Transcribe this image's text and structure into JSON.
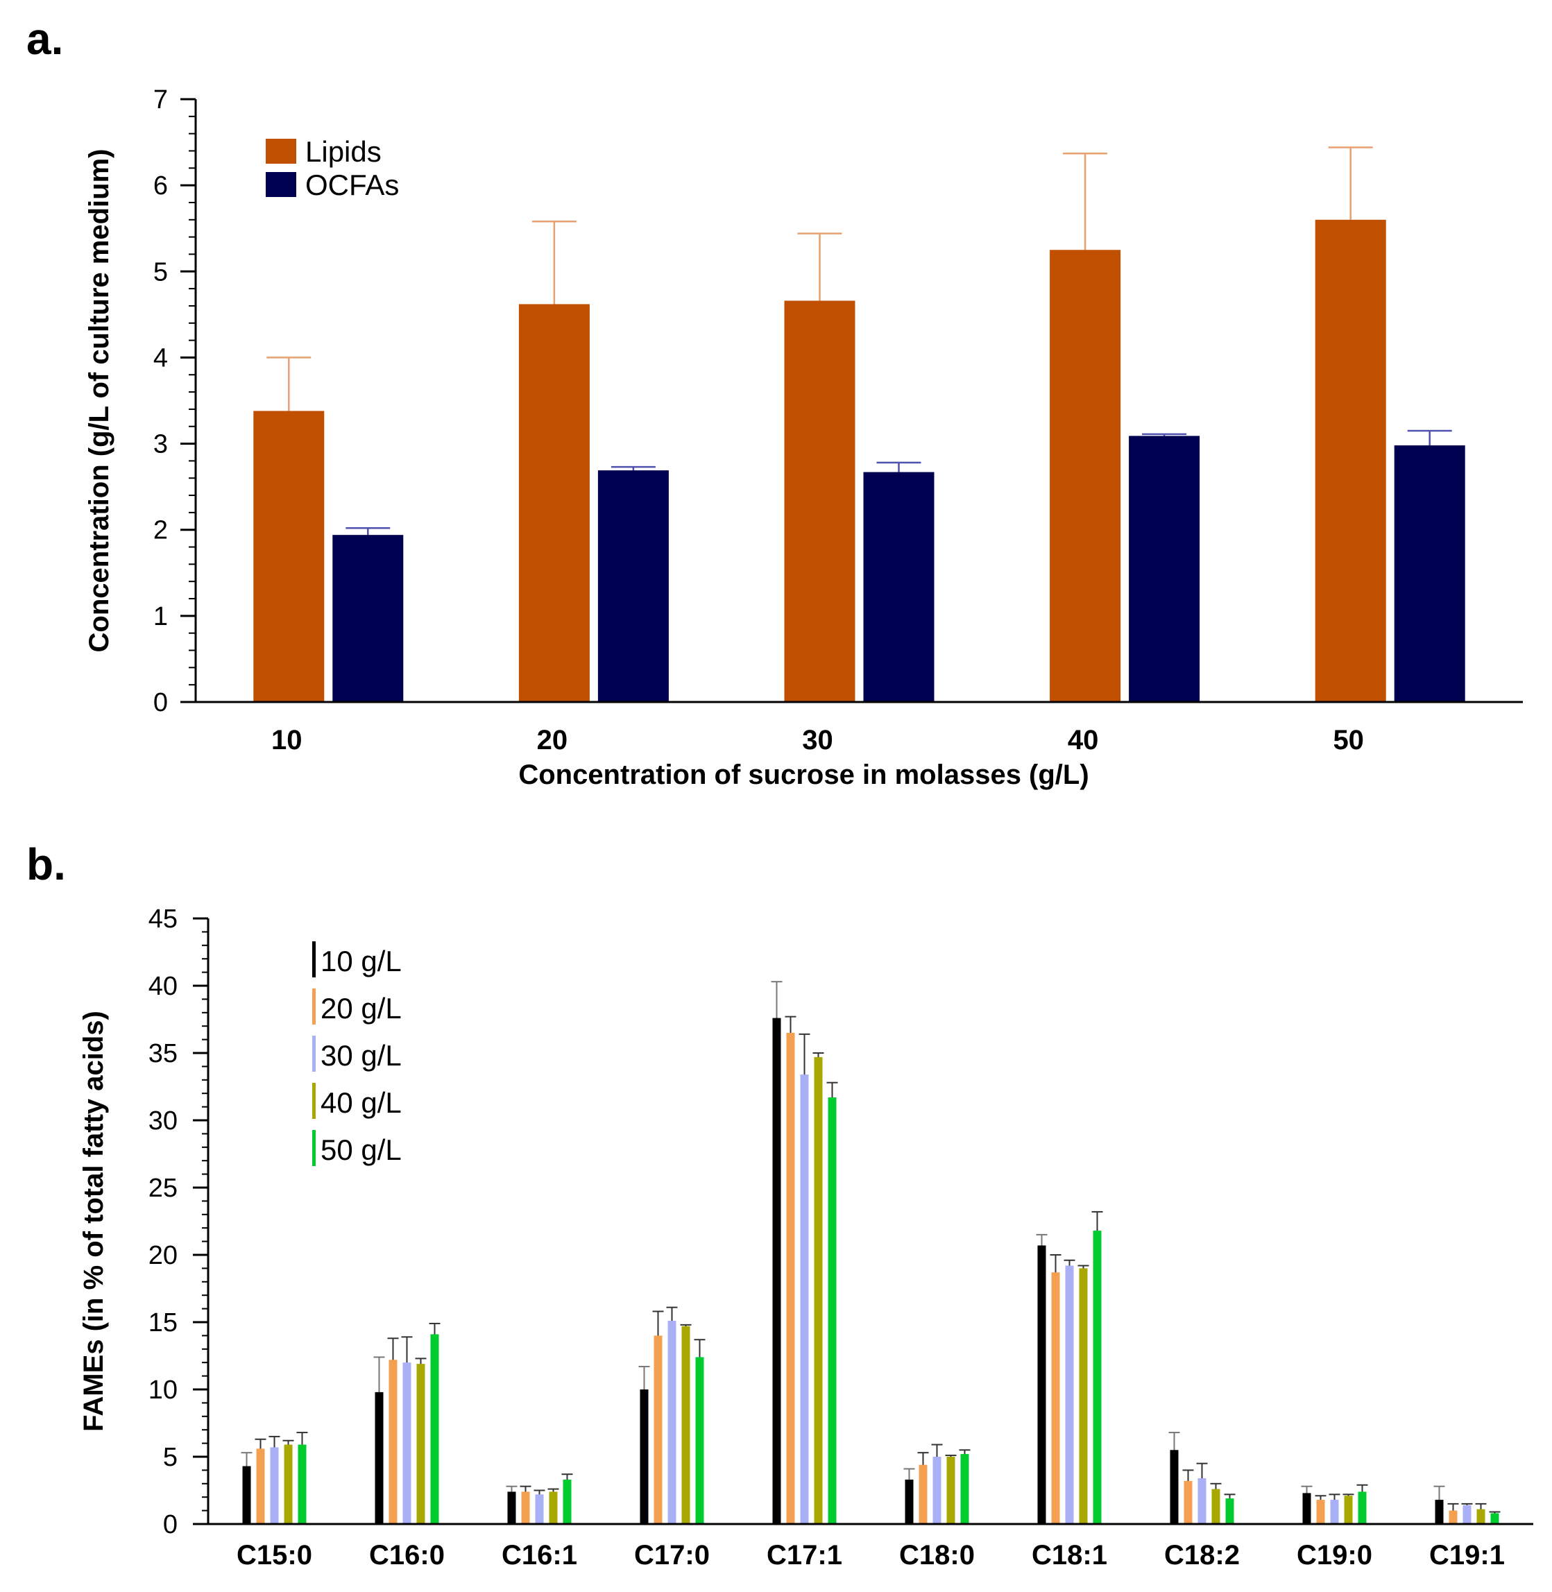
{
  "chart_data": [
    {
      "type": "bar",
      "panel_label": "a.",
      "xlabel": "Concentration of sucrose in molasses (g/L)",
      "ylabel": "Concentration (g/L of culture medium)",
      "ylim": [
        0,
        7
      ],
      "yticks": [
        "0",
        "1",
        "2",
        "3",
        "4",
        "5",
        "6",
        "7"
      ],
      "categories": [
        "10",
        "20",
        "30",
        "40",
        "50"
      ],
      "legend_position": "top-left",
      "series": [
        {
          "name": "Lipids",
          "color": "#c05000",
          "error_color": "#e8a070",
          "values": [
            3.38,
            4.62,
            4.66,
            5.25,
            5.6
          ],
          "errors": [
            0.62,
            0.96,
            0.78,
            1.12,
            0.84
          ]
        },
        {
          "name": "OCFAs",
          "color": "#000050",
          "error_color": "#5050b0",
          "values": [
            1.94,
            2.69,
            2.67,
            3.09,
            2.98
          ],
          "errors": [
            0.08,
            0.04,
            0.11,
            0.02,
            0.17
          ]
        }
      ]
    },
    {
      "type": "bar",
      "panel_label": "b.",
      "xlabel": "",
      "ylabel": "FAMEs (in % of total fatty acids)",
      "ylim": [
        0,
        45
      ],
      "yticks": [
        "0",
        "5",
        "10",
        "15",
        "20",
        "25",
        "30",
        "35",
        "40",
        "45"
      ],
      "categories": [
        "C15:0",
        "C16:0",
        "C16:1",
        "C17:0",
        "C17:1",
        "C18:0",
        "C18:1",
        "C18:2",
        "C19:0",
        "C19:1"
      ],
      "legend_position": "top-left",
      "series": [
        {
          "name": "10 g/L",
          "color": "#000000",
          "values": [
            4.3,
            9.8,
            2.4,
            10.0,
            37.6,
            3.3,
            20.7,
            5.5,
            2.3,
            1.8
          ],
          "errors": [
            1.0,
            2.6,
            0.4,
            1.7,
            2.7,
            0.8,
            0.8,
            1.3,
            0.5,
            1.0
          ]
        },
        {
          "name": "20 g/L",
          "color": "#f5a050",
          "values": [
            5.6,
            12.2,
            2.4,
            14.0,
            36.5,
            4.4,
            18.7,
            3.2,
            1.8,
            1.0
          ],
          "errors": [
            0.7,
            1.6,
            0.4,
            1.8,
            1.2,
            0.9,
            1.3,
            0.8,
            0.3,
            0.5
          ]
        },
        {
          "name": "30 g/L",
          "color": "#aab0f5",
          "values": [
            5.7,
            12.0,
            2.2,
            15.1,
            33.4,
            5.0,
            19.2,
            3.4,
            1.8,
            1.4
          ],
          "errors": [
            0.8,
            1.9,
            0.3,
            1.0,
            3.0,
            0.9,
            0.4,
            1.1,
            0.4,
            0.1
          ]
        },
        {
          "name": "40 g/L",
          "color": "#a8a800",
          "values": [
            5.9,
            11.9,
            2.4,
            14.7,
            34.7,
            5.0,
            19.0,
            2.6,
            2.1,
            1.1
          ],
          "errors": [
            0.3,
            0.4,
            0.2,
            0.1,
            0.3,
            0.1,
            0.2,
            0.4,
            0.1,
            0.4
          ]
        },
        {
          "name": "50 g/L",
          "color": "#00cc30",
          "values": [
            5.9,
            14.1,
            3.3,
            12.4,
            31.7,
            5.2,
            21.8,
            1.9,
            2.4,
            0.8
          ],
          "errors": [
            0.9,
            0.8,
            0.4,
            1.3,
            1.1,
            0.3,
            1.4,
            0.3,
            0.5,
            0.1
          ]
        }
      ]
    }
  ]
}
